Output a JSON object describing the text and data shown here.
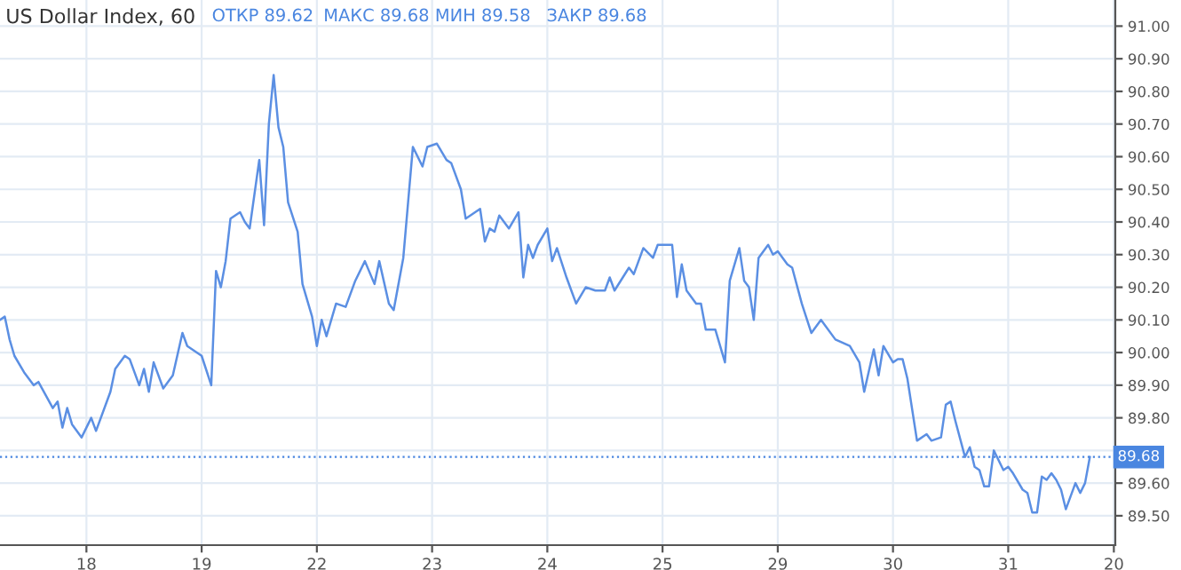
{
  "chart_data": {
    "type": "line",
    "title": "US Dollar Index, 60",
    "annotations": [
      "ОТКР 89.62",
      "МАКС 89.68",
      "МИН 89.58",
      "ЗАКР 89.68"
    ],
    "categories": [
      null,
      null,
      null,
      null,
      null,
      null,
      null,
      null,
      null,
      null,
      null,
      null,
      null,
      null,
      null,
      null,
      null,
      null,
      "18",
      null,
      null,
      null,
      null,
      null,
      null,
      null,
      null,
      null,
      null,
      null,
      null,
      null,
      null,
      null,
      null,
      null,
      null,
      null,
      null,
      null,
      null,
      null,
      "19",
      null,
      null,
      null,
      null,
      null,
      null,
      null,
      null,
      null,
      null,
      null,
      null,
      null,
      null,
      null,
      null,
      null,
      null,
      null,
      null,
      null,
      null,
      null,
      "22",
      null,
      null,
      null,
      null,
      null,
      null,
      null,
      null,
      null,
      null,
      null,
      null,
      null,
      null,
      null,
      null,
      null,
      null,
      null,
      null,
      null,
      null,
      null,
      "23",
      null,
      null,
      null,
      null,
      null,
      null,
      null,
      null,
      null,
      null,
      null,
      null,
      null,
      null,
      null,
      null,
      null,
      null,
      null,
      null,
      null,
      null,
      null,
      "24",
      null,
      null,
      null,
      null,
      null,
      null,
      null,
      null,
      null,
      null,
      null,
      null,
      null,
      null,
      null,
      null,
      null,
      null,
      null,
      null,
      null,
      null,
      null,
      "25",
      null,
      null,
      null,
      null,
      null,
      null,
      null,
      null,
      null,
      null,
      null,
      null,
      null,
      null,
      null,
      null,
      null,
      null,
      null,
      null,
      null,
      null,
      null,
      "29",
      null,
      null,
      null,
      null,
      null,
      null,
      null,
      null,
      null,
      null,
      null,
      null,
      null,
      null,
      null,
      null,
      null,
      null,
      null,
      null,
      null,
      null,
      null,
      "30",
      null,
      null,
      null,
      null,
      null,
      null,
      null,
      null,
      null,
      null,
      null,
      null,
      null,
      null,
      null,
      null,
      null,
      null,
      null,
      null,
      null,
      null,
      null,
      "31",
      null,
      null,
      null,
      null,
      null,
      null,
      null,
      null,
      null,
      null,
      null,
      null,
      null,
      null,
      null,
      null,
      null,
      null,
      null,
      null,
      null,
      "20"
    ],
    "series": [
      {
        "color": "#5b8fe3",
        "values": [
          90.1,
          90.11,
          90.04,
          89.99,
          null,
          89.94,
          null,
          89.9,
          89.91,
          null,
          null,
          89.83,
          89.85,
          89.77,
          89.83,
          89.78,
          null,
          89.74,
          null,
          89.8,
          89.76,
          null,
          null,
          89.88,
          89.95,
          null,
          89.99,
          89.98,
          null,
          89.9,
          89.95,
          89.88,
          89.97,
          null,
          89.89,
          null,
          89.93,
          null,
          90.06,
          90.02,
          null,
          null,
          89.99,
          null,
          89.9,
          90.25,
          90.2,
          90.28,
          90.41,
          null,
          90.43,
          90.4,
          90.38,
          null,
          90.59,
          90.39,
          90.7,
          90.85,
          90.69,
          90.63,
          90.46,
          null,
          90.37,
          90.21,
          null,
          90.11,
          90.02,
          90.1,
          90.05,
          null,
          90.15,
          null,
          90.14,
          null,
          90.22,
          null,
          90.28,
          null,
          90.21,
          90.28,
          null,
          90.15,
          90.13,
          null,
          90.29,
          null,
          90.63,
          null,
          90.57,
          90.63,
          null,
          90.64,
          null,
          90.59,
          90.58,
          null,
          90.5,
          90.41,
          null,
          null,
          90.44,
          90.34,
          90.38,
          90.37,
          90.42,
          null,
          90.38,
          null,
          90.43,
          90.23,
          90.33,
          90.29,
          90.33,
          null,
          90.38,
          90.28,
          90.32,
          null,
          90.23,
          90.19,
          90.15,
          null,
          90.2,
          null,
          90.19,
          null,
          90.19,
          90.23,
          90.19,
          null,
          null,
          90.26,
          90.24,
          null,
          90.32,
          null,
          90.29,
          90.33,
          null,
          null,
          90.33,
          90.17,
          90.27,
          90.19,
          null,
          90.15,
          90.15,
          90.07,
          null,
          90.07,
          null,
          89.97,
          90.22,
          null,
          90.32,
          90.22,
          90.2,
          90.1,
          90.29,
          null,
          90.33,
          90.3,
          90.31,
          null,
          90.27,
          90.26,
          null,
          90.15,
          null,
          90.06,
          null,
          90.1,
          null,
          null,
          90.04,
          null,
          null,
          90.02,
          null,
          89.97,
          89.88,
          null,
          90.01,
          89.93,
          90.02,
          null,
          89.97,
          89.98,
          89.98,
          89.92,
          null,
          89.73,
          null,
          89.75,
          89.73,
          null,
          89.74,
          89.84,
          89.85,
          89.79,
          null,
          89.68,
          89.71,
          89.65,
          89.64,
          89.59,
          89.59,
          89.7,
          null,
          89.64,
          89.65,
          89.63,
          null,
          89.58,
          89.57,
          89.51,
          89.51,
          89.62,
          89.61,
          89.63,
          89.61,
          89.58,
          89.52,
          null,
          89.6,
          89.57,
          89.6,
          89.68,
          null,
          null,
          null,
          null,
          null
        ]
      }
    ],
    "ylim": [
      89.41,
      91.08
    ],
    "yticks": [
      {
        "value": 89.5,
        "label": "89.50"
      },
      {
        "value": 89.6,
        "label": "89.60"
      },
      {
        "value": 89.7,
        "label": null
      },
      {
        "value": 89.8,
        "label": "89.80"
      },
      {
        "value": 89.9,
        "label": "89.90"
      },
      {
        "value": 90.0,
        "label": "90.00"
      },
      {
        "value": 90.1,
        "label": "90.10"
      },
      {
        "value": 90.2,
        "label": "90.20"
      },
      {
        "value": 90.3,
        "label": "90.30"
      },
      {
        "value": 90.4,
        "label": "90.40"
      },
      {
        "value": 90.5,
        "label": "90.50"
      },
      {
        "value": 90.6,
        "label": "90.60"
      },
      {
        "value": 90.7,
        "label": "90.70"
      },
      {
        "value": 90.8,
        "label": "90.80"
      },
      {
        "value": 90.9,
        "label": "90.90"
      },
      {
        "value": 91.0,
        "label": "91.00"
      }
    ],
    "ref_lines": [
      {
        "axis": "y",
        "value": 89.68,
        "label": "89.68",
        "color": "#4a86e0",
        "line_style": "dotted"
      }
    ],
    "grid": true,
    "legend": false,
    "marker": "none",
    "line_style": "solid"
  }
}
